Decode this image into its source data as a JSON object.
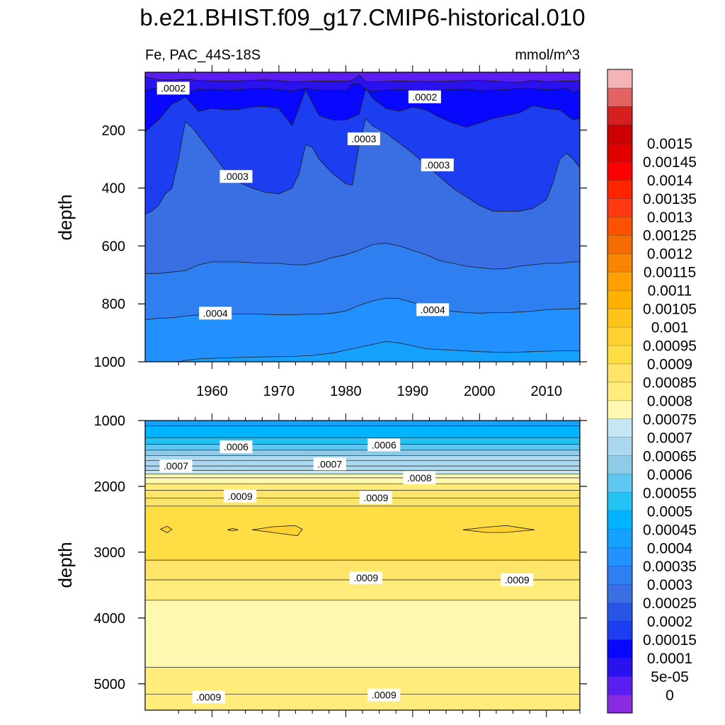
{
  "figure": {
    "title": "b.e21.BHIST.f09_g17.CMIP6-historical.010",
    "variable_region": "Fe, PAC_44S-18S",
    "units": "mmol/m^3"
  },
  "colors": {
    "colorbar": [
      "#8a2be2",
      "#5a1ff0",
      "#2a12ef",
      "#0808ff",
      "#1c3ef0",
      "#2755e6",
      "#3a6fe3",
      "#2f7ff0",
      "#2390ff",
      "#15a2ff",
      "#00b4ff",
      "#22c2f4",
      "#5ec7ef",
      "#8ecbe9",
      "#a9d8f0",
      "#c5e6f4",
      "#fff8b0",
      "#ffec7a",
      "#ffe46a",
      "#ffdd44",
      "#ffd230",
      "#ffc31a",
      "#ffb100",
      "#ffa000",
      "#f98400",
      "#f46c00",
      "#fa5200",
      "#ff3a10",
      "#ff2400",
      "#ff0000",
      "#e00000",
      "#cc0000",
      "#d62020",
      "#e36262",
      "#f4b4b4"
    ]
  },
  "chart_data": [
    {
      "type": "heatmap",
      "panel": "top",
      "ylabel": "depth",
      "xlim": [
        1950,
        2015
      ],
      "ylim": [
        0,
        1000
      ],
      "y_reversed": true,
      "xticks": [
        1960,
        1970,
        1980,
        1990,
        2000,
        2010
      ],
      "yticks": [
        200,
        400,
        600,
        800,
        1000
      ],
      "grid": false,
      "contour_interval": 5e-05,
      "contours": [
        {
          "level": 0.0001,
          "x": [
            1950,
            1952,
            1954,
            1956,
            1958,
            1960,
            1964,
            1968,
            1972,
            1976,
            1980,
            1981,
            1982,
            1983,
            1984,
            1988,
            1992,
            1996,
            2000,
            2004,
            2006,
            2008,
            2010,
            2012,
            2015
          ],
          "depth": [
            15,
            26,
            27,
            24,
            28,
            30,
            30,
            26,
            33,
            30,
            31,
            28,
            10,
            33,
            33,
            30,
            32,
            30,
            28,
            33,
            35,
            28,
            33,
            31,
            30
          ]
        },
        {
          "level": 0.00015,
          "x": [
            1950,
            1951,
            1952,
            1954,
            1955,
            1956,
            1958,
            1960,
            1962,
            1964,
            1966,
            1968,
            1970,
            1972,
            1974,
            1976,
            1978,
            1980,
            1981,
            1982,
            1983,
            1984,
            1986,
            1988,
            1990,
            1992,
            1994,
            1996,
            1998,
            2000,
            2004,
            2006,
            2008,
            2010,
            2012,
            2013,
            2014,
            2015
          ],
          "depth": [
            65,
            58,
            52,
            62,
            55,
            70,
            60,
            58,
            62,
            60,
            57,
            56,
            60,
            65,
            55,
            62,
            62,
            63,
            40,
            40,
            62,
            65,
            62,
            60,
            62,
            64,
            62,
            60,
            58,
            64,
            60,
            56,
            58,
            60,
            58,
            55,
            70,
            60
          ]
        },
        {
          "level": 0.0002,
          "x": [
            1950,
            1952,
            1954,
            1955,
            1956,
            1958,
            1960,
            1962,
            1964,
            1966,
            1968,
            1970,
            1972,
            1974,
            1976,
            1978,
            1980,
            1982,
            1983,
            1984,
            1986,
            1988,
            1990,
            1992,
            1994,
            1996,
            1998,
            2000,
            2002,
            2004,
            2006,
            2008,
            2010,
            2012,
            2014,
            2015
          ],
          "depth": [
            205,
            165,
            110,
            100,
            85,
            135,
            125,
            130,
            128,
            120,
            118,
            125,
            185,
            60,
            150,
            165,
            165,
            145,
            55,
            90,
            125,
            135,
            120,
            130,
            155,
            175,
            190,
            175,
            160,
            150,
            140,
            115,
            125,
            130,
            165,
            160
          ]
        },
        {
          "level": 0.0003,
          "x": [
            1950,
            1951,
            1952,
            1953,
            1954,
            1955,
            1956,
            1957,
            1958,
            1960,
            1962,
            1964,
            1966,
            1968,
            1970,
            1972,
            1973,
            1974,
            1975,
            1976,
            1978,
            1980,
            1981,
            1982,
            1983,
            1984,
            1986,
            1988,
            1990,
            1992,
            1994,
            1996,
            1998,
            2000,
            2002,
            2004,
            2006,
            2008,
            2010,
            2011,
            2012,
            2013,
            2014,
            2015
          ],
          "depth": [
            490,
            480,
            460,
            420,
            400,
            300,
            170,
            190,
            220,
            280,
            340,
            380,
            400,
            415,
            420,
            400,
            350,
            250,
            260,
            300,
            350,
            385,
            390,
            250,
            160,
            185,
            210,
            245,
            280,
            320,
            360,
            400,
            430,
            460,
            480,
            480,
            480,
            470,
            440,
            380,
            300,
            280,
            300,
            330
          ]
        },
        {
          "level": 0.00035,
          "x": [
            1950,
            1952,
            1954,
            1956,
            1958,
            1960,
            1962,
            1964,
            1966,
            1968,
            1970,
            1972,
            1974,
            1976,
            1978,
            1980,
            1982,
            1984,
            1986,
            1988,
            1990,
            1992,
            1994,
            1996,
            1998,
            2000,
            2002,
            2004,
            2006,
            2008,
            2010,
            2012,
            2014,
            2015
          ],
          "depth": [
            695,
            695,
            690,
            685,
            665,
            655,
            655,
            655,
            658,
            660,
            660,
            665,
            665,
            655,
            640,
            630,
            615,
            595,
            590,
            600,
            615,
            630,
            650,
            660,
            670,
            675,
            680,
            678,
            670,
            665,
            660,
            660,
            655,
            655
          ]
        },
        {
          "level": 0.0004,
          "x": [
            1950,
            1952,
            1954,
            1956,
            1958,
            1960,
            1962,
            1964,
            1966,
            1968,
            1970,
            1972,
            1974,
            1976,
            1978,
            1980,
            1982,
            1984,
            1986,
            1988,
            1990,
            1992,
            1994,
            1996,
            1998,
            2000,
            2002,
            2004,
            2006,
            2008,
            2010,
            2012,
            2014,
            2015
          ],
          "depth": [
            855,
            850,
            848,
            842,
            838,
            836,
            836,
            835,
            835,
            836,
            838,
            838,
            836,
            836,
            832,
            825,
            805,
            790,
            780,
            782,
            795,
            808,
            818,
            826,
            830,
            832,
            830,
            830,
            828,
            825,
            820,
            818,
            817,
            816
          ]
        },
        {
          "level": 0.00045,
          "x": [
            1950,
            1955,
            1956,
            1958,
            1960,
            1964,
            1968,
            1972,
            1975,
            1978,
            1980,
            1982,
            1984,
            1986,
            1988,
            1990,
            1992,
            1996,
            2000,
            2004,
            2008,
            2012,
            2015
          ],
          "depth": [
            1000,
            1000,
            995,
            990,
            988,
            985,
            983,
            982,
            978,
            970,
            960,
            950,
            940,
            930,
            935,
            945,
            955,
            960,
            965,
            968,
            965,
            962,
            962
          ]
        }
      ],
      "labels": [
        {
          "text": ".0002",
          "x": 1954.2,
          "depth": 55
        },
        {
          "text": ".0002",
          "x": 1991.8,
          "depth": 85
        },
        {
          "text": ".0003",
          "x": 1982.7,
          "depth": 230
        },
        {
          "text": ".0003",
          "x": 1963.6,
          "depth": 360
        },
        {
          "text": ".0003",
          "x": 1993.7,
          "depth": 320
        },
        {
          "text": ".0004",
          "x": 1960.5,
          "depth": 832
        },
        {
          "text": ".0004",
          "x": 1993.0,
          "depth": 820
        }
      ]
    },
    {
      "type": "heatmap",
      "panel": "bottom",
      "ylabel": "depth",
      "xlim": [
        1950,
        2015
      ],
      "ylim": [
        1000,
        5400
      ],
      "y_reversed": true,
      "yticks": [
        1000,
        2000,
        3000,
        4000,
        5000
      ],
      "grid": false,
      "contour_interval": 5e-05,
      "contour_depths": [
        1080,
        1260,
        1360,
        1450,
        1530,
        1610,
        1690,
        1760,
        1810,
        1870,
        1960,
        2060,
        2180,
        2300,
        3120,
        3420,
        3730,
        4750,
        5160
      ],
      "bands": [
        {
          "top": 1000,
          "bottom": 1080,
          "value": 0.000475
        },
        {
          "top": 1080,
          "bottom": 1260,
          "value": 0.000525
        },
        {
          "top": 1260,
          "bottom": 1360,
          "value": 0.000575
        },
        {
          "top": 1360,
          "bottom": 1450,
          "value": 0.000625
        },
        {
          "top": 1450,
          "bottom": 1530,
          "value": 0.000675
        },
        {
          "top": 1530,
          "bottom": 1610,
          "value": 0.000725
        },
        {
          "top": 1610,
          "bottom": 1690,
          "value": 0.000725
        },
        {
          "top": 1690,
          "bottom": 1760,
          "value": 0.000725
        },
        {
          "top": 1760,
          "bottom": 1810,
          "value": 0.000775
        },
        {
          "top": 1810,
          "bottom": 1870,
          "value": 0.000825
        },
        {
          "top": 1870,
          "bottom": 1960,
          "value": 0.000825
        },
        {
          "top": 1960,
          "bottom": 2060,
          "value": 0.000875
        },
        {
          "top": 2060,
          "bottom": 2180,
          "value": 0.000925
        },
        {
          "top": 2180,
          "bottom": 2300,
          "value": 0.000925
        },
        {
          "top": 2300,
          "bottom": 3120,
          "value": 0.000975
        },
        {
          "top": 3120,
          "bottom": 3420,
          "value": 0.000925
        },
        {
          "top": 3420,
          "bottom": 3730,
          "value": 0.000875
        },
        {
          "top": 3730,
          "bottom": 4750,
          "value": 0.000825
        },
        {
          "top": 4750,
          "bottom": 5160,
          "value": 0.000875
        },
        {
          "top": 5160,
          "bottom": 5400,
          "value": 0.000875
        }
      ],
      "patches": [
        {
          "x": [
            1952.3,
            1953.3,
            1954.0,
            1953.3,
            1952.3
          ],
          "depth": [
            2650,
            2605,
            2655,
            2705,
            2650
          ]
        },
        {
          "x": [
            1962.3,
            1963.1,
            1963.9,
            1963.1,
            1962.3
          ],
          "depth": [
            2660,
            2640,
            2660,
            2675,
            2660
          ]
        },
        {
          "x": [
            1966.0,
            1969.0,
            1972.4,
            1973.5,
            1972.8,
            1969.0,
            1966.0
          ],
          "depth": [
            2660,
            2615,
            2595,
            2650,
            2750,
            2700,
            2660
          ]
        },
        {
          "x": [
            1997.5,
            2001.0,
            2004.0,
            2008.2,
            2004.0,
            2001.0,
            1997.5
          ],
          "depth": [
            2660,
            2620,
            2595,
            2660,
            2700,
            2700,
            2660
          ]
        }
      ],
      "labels": [
        {
          "text": ".0006",
          "x": 1963.6,
          "depth": 1400
        },
        {
          "text": ".0006",
          "x": 1985.7,
          "depth": 1370
        },
        {
          "text": ".0007",
          "x": 1954.6,
          "depth": 1690
        },
        {
          "text": ".0007",
          "x": 1977.6,
          "depth": 1660
        },
        {
          "text": ".0008",
          "x": 1991.0,
          "depth": 1870
        },
        {
          "text": ".0009",
          "x": 1964.2,
          "depth": 2150
        },
        {
          "text": ".0009",
          "x": 1984.5,
          "depth": 2170
        },
        {
          "text": ".0009",
          "x": 1983.0,
          "depth": 3390
        },
        {
          "text": ".0009",
          "x": 2005.6,
          "depth": 3420
        },
        {
          "text": ".0009",
          "x": 1959.5,
          "depth": 5200
        },
        {
          "text": ".0009",
          "x": 1985.7,
          "depth": 5170
        }
      ]
    },
    {
      "type": "colorbar",
      "ticks": [
        "0",
        "5e-05",
        "0.0001",
        "0.00015",
        "0.0002",
        "0.00025",
        "0.0003",
        "0.00035",
        "0.0004",
        "0.00045",
        "0.0005",
        "0.00055",
        "0.0006",
        "0.00065",
        "0.0007",
        "0.00075",
        "0.0008",
        "0.00085",
        "0.0009",
        "0.00095",
        "0.001",
        "0.00105",
        "0.0011",
        "0.00115",
        "0.0012",
        "0.00125",
        "0.0013",
        "0.00135",
        "0.0014",
        "0.00145",
        "0.0015"
      ]
    }
  ]
}
